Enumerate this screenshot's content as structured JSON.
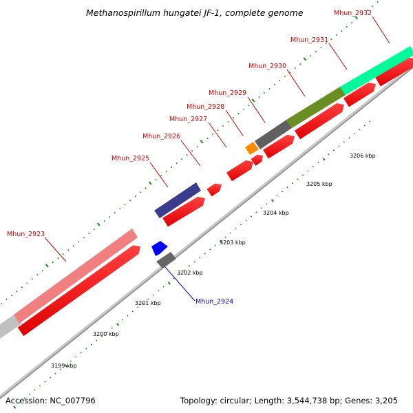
{
  "header": {
    "title": "Methanospirillum hungatei JF-1, complete genome"
  },
  "footer": {
    "accession": "Accession: NC_007796",
    "summary": "Topology: circular; Length: 3,544,738 bp; Genes: 3,205"
  },
  "colors": {
    "backbone": "#999999",
    "cds_strand": "#ff0000",
    "forward_tick": "#008000",
    "label_red": "#cc0000",
    "label_blue": "#0000cc"
  },
  "kbp_labels": [
    "3199 kbp",
    "3200 kbp",
    "3201 kbp",
    "3202 kbp",
    "3203 kbp",
    "3204 kbp",
    "3205 kbp",
    "3206 kbp"
  ],
  "genes": [
    {
      "name": "Mhun_2923",
      "color": "#f08080"
    },
    {
      "name": "Mhun_2924",
      "color": "#0000ff"
    },
    {
      "name": "Mhun_2925",
      "color": "#3c3c8c"
    },
    {
      "name": "Mhun_2926",
      "color": "#ff0000"
    },
    {
      "name": "Mhun_2927",
      "color": "#ff0000"
    },
    {
      "name": "Mhun_2928",
      "color": "#ff8c00"
    },
    {
      "name": "Mhun_2929",
      "color": "#5a5a5a"
    },
    {
      "name": "Mhun_2930",
      "color": "#6b8e23"
    },
    {
      "name": "Mhun_2931",
      "color": "#00fa9a"
    },
    {
      "name": "Mhun_2932",
      "color": "#00fa9a"
    }
  ]
}
